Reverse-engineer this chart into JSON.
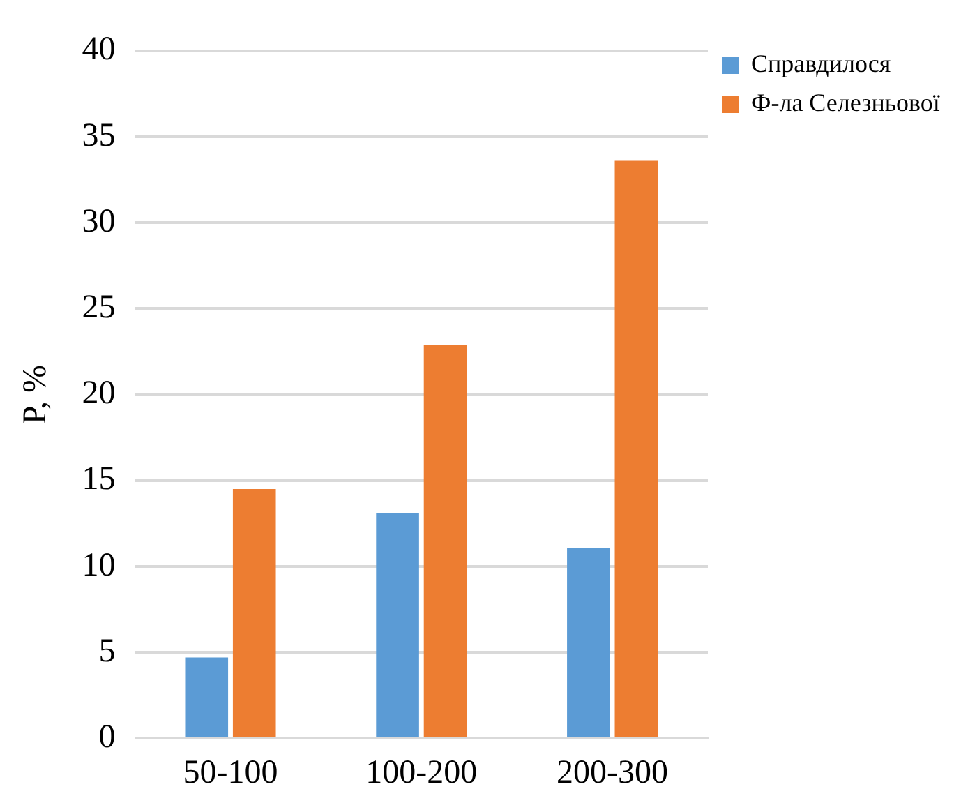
{
  "chart_data": {
    "type": "bar",
    "ylabel": "P, %",
    "categories": [
      "50-100",
      "100-200",
      "200-300"
    ],
    "series": [
      {
        "name": "Справдилося",
        "color": "#5b9bd5",
        "values": [
          4.7,
          13.1,
          11.1
        ]
      },
      {
        "name": "Ф-ла Селезньової",
        "color": "#ed7d31",
        "values": [
          14.5,
          22.9,
          33.6
        ]
      }
    ],
    "ylim": [
      0,
      40
    ],
    "yticks": [
      0,
      5,
      10,
      15,
      20,
      25,
      30,
      35,
      40
    ],
    "grid": "y",
    "legend": "top right"
  }
}
